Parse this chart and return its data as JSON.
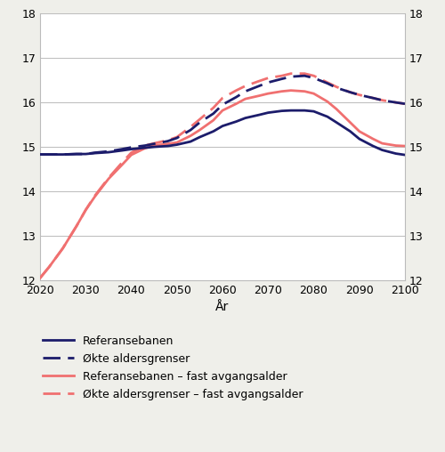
{
  "years": [
    2020,
    2022,
    2025,
    2028,
    2030,
    2032,
    2035,
    2038,
    2040,
    2043,
    2045,
    2048,
    2050,
    2053,
    2055,
    2058,
    2060,
    2063,
    2065,
    2068,
    2070,
    2073,
    2075,
    2078,
    2080,
    2083,
    2085,
    2088,
    2090,
    2093,
    2095,
    2098,
    2100
  ],
  "referansebanen": [
    14.83,
    14.83,
    14.83,
    14.84,
    14.84,
    14.86,
    14.88,
    14.92,
    14.95,
    14.98,
    15.0,
    15.02,
    15.05,
    15.12,
    15.22,
    15.35,
    15.47,
    15.57,
    15.65,
    15.72,
    15.77,
    15.81,
    15.82,
    15.82,
    15.8,
    15.68,
    15.55,
    15.35,
    15.18,
    15.02,
    14.93,
    14.85,
    14.82
  ],
  "okte_aldersgrenser": [
    14.83,
    14.83,
    14.83,
    14.84,
    14.84,
    14.87,
    14.9,
    14.95,
    14.99,
    15.03,
    15.07,
    15.13,
    15.2,
    15.38,
    15.55,
    15.75,
    15.95,
    16.12,
    16.25,
    16.37,
    16.45,
    16.53,
    16.58,
    16.6,
    16.55,
    16.43,
    16.33,
    16.23,
    16.17,
    16.1,
    16.05,
    16.0,
    15.97
  ],
  "referansebanen_fast": [
    12.05,
    12.3,
    12.72,
    13.22,
    13.58,
    13.88,
    14.28,
    14.6,
    14.82,
    14.97,
    15.03,
    15.07,
    15.1,
    15.25,
    15.38,
    15.6,
    15.82,
    15.97,
    16.08,
    16.15,
    16.2,
    16.25,
    16.27,
    16.25,
    16.2,
    16.02,
    15.85,
    15.55,
    15.35,
    15.18,
    15.08,
    15.03,
    15.02
  ],
  "okte_aldersgrenser_fast": [
    12.05,
    12.3,
    12.72,
    13.22,
    13.58,
    13.9,
    14.3,
    14.65,
    14.87,
    15.03,
    15.08,
    15.15,
    15.22,
    15.45,
    15.62,
    15.88,
    16.1,
    16.27,
    16.37,
    16.48,
    16.55,
    16.6,
    16.65,
    16.65,
    16.6,
    16.45,
    16.35,
    16.23,
    16.17,
    16.1,
    16.05,
    16.0,
    15.97
  ],
  "ylim": [
    12,
    18
  ],
  "yticks": [
    12,
    13,
    14,
    15,
    16,
    17,
    18
  ],
  "xticks": [
    2020,
    2030,
    2040,
    2050,
    2060,
    2070,
    2080,
    2090,
    2100
  ],
  "xlabel": "År",
  "color_dark_blue": "#1c1c6b",
  "color_salmon": "#f07070",
  "legend_labels": [
    "Referansebanen",
    "Økte aldersgrenser",
    "Referansebanen – fast avgangsalder",
    "Økte aldersgrenser – fast avgangsalder"
  ],
  "bg_color": "#efefea",
  "plot_bg_color": "#ffffff",
  "linewidth": 2.0
}
